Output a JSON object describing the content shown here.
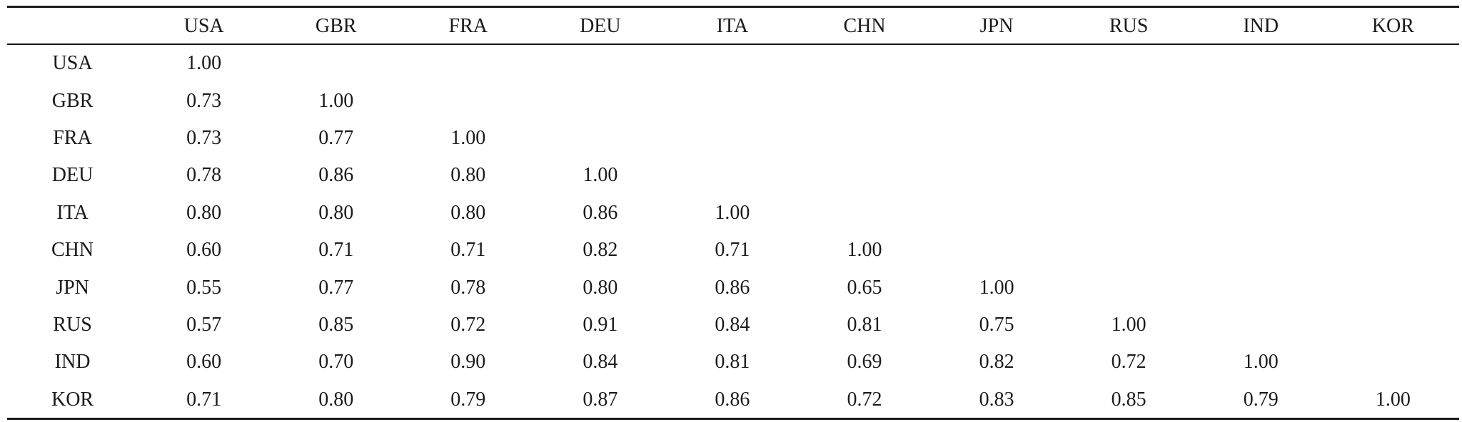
{
  "table": {
    "corner": "",
    "columns": [
      "USA",
      "GBR",
      "FRA",
      "DEU",
      "ITA",
      "CHN",
      "JPN",
      "RUS",
      "IND",
      "KOR"
    ],
    "rows": [
      {
        "label": "USA",
        "values": [
          "1.00",
          "",
          "",
          "",
          "",
          "",
          "",
          "",
          "",
          ""
        ]
      },
      {
        "label": "GBR",
        "values": [
          "0.73",
          "1.00",
          "",
          "",
          "",
          "",
          "",
          "",
          "",
          ""
        ]
      },
      {
        "label": "FRA",
        "values": [
          "0.73",
          "0.77",
          "1.00",
          "",
          "",
          "",
          "",
          "",
          "",
          ""
        ]
      },
      {
        "label": "DEU",
        "values": [
          "0.78",
          "0.86",
          "0.80",
          "1.00",
          "",
          "",
          "",
          "",
          "",
          ""
        ]
      },
      {
        "label": "ITA",
        "values": [
          "0.80",
          "0.80",
          "0.80",
          "0.86",
          "1.00",
          "",
          "",
          "",
          "",
          ""
        ]
      },
      {
        "label": "CHN",
        "values": [
          "0.60",
          "0.71",
          "0.71",
          "0.82",
          "0.71",
          "1.00",
          "",
          "",
          "",
          ""
        ]
      },
      {
        "label": "JPN",
        "values": [
          "0.55",
          "0.77",
          "0.78",
          "0.80",
          "0.86",
          "0.65",
          "1.00",
          "",
          "",
          ""
        ]
      },
      {
        "label": "RUS",
        "values": [
          "0.57",
          "0.85",
          "0.72",
          "0.91",
          "0.84",
          "0.81",
          "0.75",
          "1.00",
          "",
          ""
        ]
      },
      {
        "label": "IND",
        "values": [
          "0.60",
          "0.70",
          "0.90",
          "0.84",
          "0.81",
          "0.69",
          "0.82",
          "0.72",
          "1.00",
          ""
        ]
      },
      {
        "label": "KOR",
        "values": [
          "0.71",
          "0.80",
          "0.79",
          "0.87",
          "0.86",
          "0.72",
          "0.83",
          "0.85",
          "0.79",
          "1.00"
        ]
      }
    ]
  }
}
